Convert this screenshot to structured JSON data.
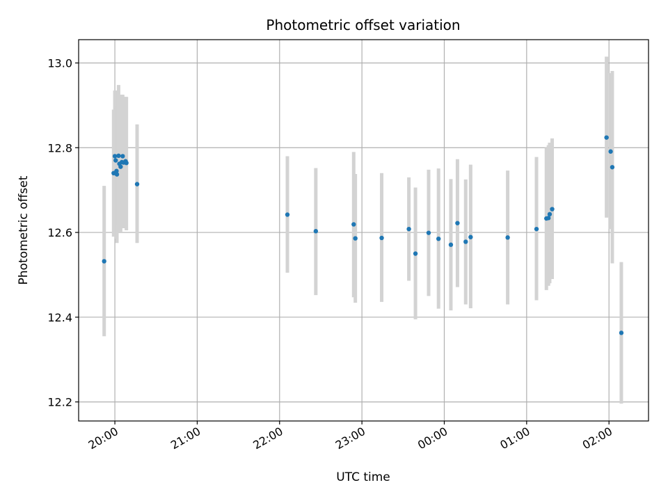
{
  "chart_data": {
    "type": "scatter",
    "title": "Photometric offset variation",
    "xlabel": "UTC time",
    "ylabel": "Photometric offset",
    "x_unit": "hours since 00:00 UTC of first day",
    "x_ticks": [
      {
        "value": 20,
        "label": "20:00"
      },
      {
        "value": 21,
        "label": "21:00"
      },
      {
        "value": 22,
        "label": "22:00"
      },
      {
        "value": 23,
        "label": "23:00"
      },
      {
        "value": 24,
        "label": "00:00"
      },
      {
        "value": 25,
        "label": "01:00"
      },
      {
        "value": 26,
        "label": "02:00"
      }
    ],
    "y_ticks": [
      12.2,
      12.4,
      12.6,
      12.8,
      13.0
    ],
    "xlim": [
      19.56,
      26.48
    ],
    "ylim": [
      12.155,
      13.055
    ],
    "grid": true,
    "colors": {
      "point": "#1f77b4",
      "errorbar": "#d3d3d3",
      "grid": "#b0b0b0"
    },
    "points": [
      {
        "t": 19.87,
        "y": 12.532,
        "lo": 12.355,
        "hi": 12.71
      },
      {
        "t": 19.985,
        "y": 12.74,
        "lo": 12.59,
        "hi": 12.89
      },
      {
        "t": 20.0,
        "y": 12.78,
        "lo": 12.62,
        "hi": 12.935
      },
      {
        "t": 20.01,
        "y": 12.77,
        "lo": 12.6,
        "hi": 12.935
      },
      {
        "t": 20.02,
        "y": 12.745,
        "lo": 12.585,
        "hi": 12.905
      },
      {
        "t": 20.025,
        "y": 12.737,
        "lo": 12.575,
        "hi": 12.9
      },
      {
        "t": 20.045,
        "y": 12.781,
        "lo": 12.615,
        "hi": 12.948
      },
      {
        "t": 20.055,
        "y": 12.762,
        "lo": 12.6,
        "hi": 12.925
      },
      {
        "t": 20.07,
        "y": 12.755,
        "lo": 12.6,
        "hi": 12.91
      },
      {
        "t": 20.085,
        "y": 12.766,
        "lo": 12.61,
        "hi": 12.925
      },
      {
        "t": 20.095,
        "y": 12.78,
        "lo": 12.62,
        "hi": 12.925
      },
      {
        "t": 20.105,
        "y": 12.765,
        "lo": 12.61,
        "hi": 12.92
      },
      {
        "t": 20.13,
        "y": 12.768,
        "lo": 12.61,
        "hi": 12.92
      },
      {
        "t": 20.14,
        "y": 12.764,
        "lo": 12.605,
        "hi": 12.92
      },
      {
        "t": 20.27,
        "y": 12.714,
        "lo": 12.575,
        "hi": 12.855
      },
      {
        "t": 22.095,
        "y": 12.642,
        "lo": 12.505,
        "hi": 12.78
      },
      {
        "t": 22.44,
        "y": 12.603,
        "lo": 12.452,
        "hi": 12.752
      },
      {
        "t": 22.9,
        "y": 12.619,
        "lo": 12.447,
        "hi": 12.79
      },
      {
        "t": 22.92,
        "y": 12.586,
        "lo": 12.434,
        "hi": 12.738
      },
      {
        "t": 23.24,
        "y": 12.587,
        "lo": 12.436,
        "hi": 12.74
      },
      {
        "t": 23.57,
        "y": 12.608,
        "lo": 12.486,
        "hi": 12.73
      },
      {
        "t": 23.65,
        "y": 12.55,
        "lo": 12.395,
        "hi": 12.706
      },
      {
        "t": 23.81,
        "y": 12.599,
        "lo": 12.45,
        "hi": 12.748
      },
      {
        "t": 23.93,
        "y": 12.585,
        "lo": 12.42,
        "hi": 12.751
      },
      {
        "t": 24.08,
        "y": 12.571,
        "lo": 12.416,
        "hi": 12.726
      },
      {
        "t": 24.16,
        "y": 12.622,
        "lo": 12.471,
        "hi": 12.773
      },
      {
        "t": 24.26,
        "y": 12.578,
        "lo": 12.43,
        "hi": 12.725
      },
      {
        "t": 24.32,
        "y": 12.589,
        "lo": 12.421,
        "hi": 12.76
      },
      {
        "t": 24.77,
        "y": 12.588,
        "lo": 12.43,
        "hi": 12.746
      },
      {
        "t": 25.12,
        "y": 12.608,
        "lo": 12.44,
        "hi": 12.778
      },
      {
        "t": 25.24,
        "y": 12.633,
        "lo": 12.464,
        "hi": 12.8
      },
      {
        "t": 25.265,
        "y": 12.634,
        "lo": 12.474,
        "hi": 12.806
      },
      {
        "t": 25.28,
        "y": 12.643,
        "lo": 12.48,
        "hi": 12.812
      },
      {
        "t": 25.31,
        "y": 12.655,
        "lo": 12.49,
        "hi": 12.822
      },
      {
        "t": 25.97,
        "y": 12.824,
        "lo": 12.635,
        "hi": 13.015
      },
      {
        "t": 26.02,
        "y": 12.791,
        "lo": 12.608,
        "hi": 12.976
      },
      {
        "t": 26.04,
        "y": 12.754,
        "lo": 12.527,
        "hi": 12.981
      },
      {
        "t": 26.15,
        "y": 12.363,
        "lo": 12.196,
        "hi": 12.53
      }
    ]
  }
}
